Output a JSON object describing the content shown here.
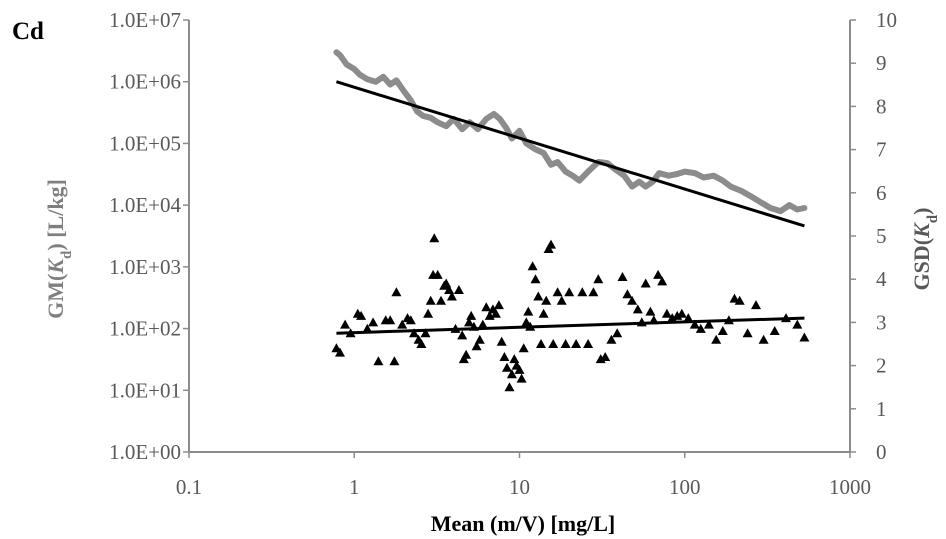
{
  "chart_data": {
    "type": "scatter",
    "panel_label": "Cd",
    "xlabel": "Mean (m/V) [mg/L]",
    "ylabel_left": {
      "main": "GM(",
      "italic": "K",
      "sub": "d",
      "tail": ")  [L/kg]"
    },
    "ylabel_right": {
      "main": "GSD(",
      "italic": "K",
      "sub": "d",
      "tail": ")"
    },
    "x_scale": "log",
    "xlim": [
      0.1,
      1000
    ],
    "x_ticks": [
      0.1,
      1,
      10,
      100,
      1000
    ],
    "x_tick_labels": [
      "0.1",
      "1",
      "10",
      "100",
      "1000"
    ],
    "y_left_scale": "log",
    "y_left_lim": [
      1,
      10000000
    ],
    "y_left_ticks": [
      1,
      10,
      100,
      1000,
      10000,
      100000,
      1000000,
      10000000
    ],
    "y_left_tick_labels": [
      "1.0E+00",
      "1.0E+01",
      "1.0E+02",
      "1.0E+03",
      "1.0E+04",
      "1.0E+05",
      "1.0E+06",
      "1.0E+07"
    ],
    "y_right_lim": [
      0,
      10
    ],
    "y_right_ticks": [
      0,
      1,
      2,
      3,
      4,
      5,
      6,
      7,
      8,
      9,
      10
    ],
    "y_right_tick_labels": [
      "0",
      "1",
      "2",
      "3",
      "4",
      "5",
      "6",
      "7",
      "8",
      "9",
      "10"
    ],
    "colors": {
      "gm_series": "#8c8c8c",
      "fit_lines": "#000000",
      "gsd_markers": "#000000",
      "axes": "#8c8c8c",
      "tick_text": "#595959",
      "left_title": "#7f7f7f",
      "right_title": "#595959"
    },
    "series": [
      {
        "axis": "left",
        "style": "thick-gray-line",
        "points": [
          [
            0.78,
            3000000
          ],
          [
            0.82,
            2700000
          ],
          [
            0.9,
            1900000
          ],
          [
            1.0,
            1600000
          ],
          [
            1.08,
            1300000
          ],
          [
            1.2,
            1100000
          ],
          [
            1.35,
            1000000
          ],
          [
            1.5,
            1200000
          ],
          [
            1.65,
            900000
          ],
          [
            1.8,
            1050000
          ],
          [
            2.0,
            700000
          ],
          [
            2.2,
            500000
          ],
          [
            2.4,
            330000
          ],
          [
            2.6,
            280000
          ],
          [
            2.9,
            260000
          ],
          [
            3.2,
            220000
          ],
          [
            3.6,
            190000
          ],
          [
            4.0,
            250000
          ],
          [
            4.5,
            170000
          ],
          [
            5.0,
            220000
          ],
          [
            5.6,
            170000
          ],
          [
            6.3,
            250000
          ],
          [
            7.0,
            300000
          ],
          [
            7.6,
            250000
          ],
          [
            8.3,
            180000
          ],
          [
            9.0,
            120000
          ],
          [
            10.0,
            160000
          ],
          [
            11.0,
            100000
          ],
          [
            12.5,
            80000
          ],
          [
            14.0,
            70000
          ],
          [
            15.5,
            45000
          ],
          [
            17.0,
            50000
          ],
          [
            19.0,
            35000
          ],
          [
            21.0,
            30000
          ],
          [
            23.0,
            25000
          ],
          [
            26.0,
            35000
          ],
          [
            30.0,
            50000
          ],
          [
            34.0,
            48000
          ],
          [
            38.0,
            38000
          ],
          [
            43.0,
            30000
          ],
          [
            48.0,
            20000
          ],
          [
            53.0,
            24000
          ],
          [
            58.0,
            20000
          ],
          [
            64.0,
            24000
          ],
          [
            70.0,
            33000
          ],
          [
            80.0,
            30000
          ],
          [
            90.0,
            32000
          ],
          [
            100.0,
            35000
          ],
          [
            115.0,
            33000
          ],
          [
            130.0,
            28000
          ],
          [
            150.0,
            30000
          ],
          [
            170.0,
            25000
          ],
          [
            190.0,
            20000
          ],
          [
            220.0,
            17000
          ],
          [
            250.0,
            14000
          ],
          [
            290.0,
            11000
          ],
          [
            330.0,
            9000
          ],
          [
            380.0,
            8000
          ],
          [
            430.0,
            10000
          ],
          [
            480.0,
            8500
          ],
          [
            530.0,
            9000
          ]
        ]
      },
      {
        "axis": "left",
        "style": "black-trend-line",
        "points": [
          [
            0.78,
            1000000
          ],
          [
            530,
            4600
          ]
        ]
      },
      {
        "axis": "right",
        "style": "black-trend-line",
        "points": [
          [
            0.78,
            2.75
          ],
          [
            530,
            3.1
          ]
        ]
      },
      {
        "axis": "right",
        "style": "triangle-markers",
        "points": [
          [
            0.78,
            2.4
          ],
          [
            0.82,
            2.3
          ],
          [
            0.88,
            2.95
          ],
          [
            0.95,
            2.75
          ],
          [
            1.05,
            3.2
          ],
          [
            1.1,
            3.15
          ],
          [
            1.2,
            2.85
          ],
          [
            1.3,
            3.0
          ],
          [
            1.4,
            2.1
          ],
          [
            1.55,
            3.05
          ],
          [
            1.65,
            3.05
          ],
          [
            1.75,
            2.1
          ],
          [
            1.8,
            3.7
          ],
          [
            1.95,
            2.95
          ],
          [
            2.1,
            3.1
          ],
          [
            2.2,
            3.05
          ],
          [
            2.3,
            2.75
          ],
          [
            2.45,
            2.6
          ],
          [
            2.55,
            2.5
          ],
          [
            2.7,
            2.75
          ],
          [
            2.8,
            3.2
          ],
          [
            2.9,
            3.5
          ],
          [
            3.0,
            4.1
          ],
          [
            3.05,
            4.95
          ],
          [
            3.2,
            4.1
          ],
          [
            3.35,
            3.5
          ],
          [
            3.5,
            3.85
          ],
          [
            3.6,
            3.9
          ],
          [
            3.75,
            3.75
          ],
          [
            3.9,
            3.6
          ],
          [
            4.1,
            2.85
          ],
          [
            4.3,
            3.75
          ],
          [
            4.5,
            2.7
          ],
          [
            4.6,
            2.15
          ],
          [
            4.75,
            2.25
          ],
          [
            4.95,
            3.0
          ],
          [
            5.1,
            3.15
          ],
          [
            5.3,
            2.9
          ],
          [
            5.5,
            2.45
          ],
          [
            5.75,
            2.6
          ],
          [
            6.0,
            2.95
          ],
          [
            6.3,
            3.35
          ],
          [
            6.6,
            3.15
          ],
          [
            6.9,
            3.3
          ],
          [
            7.2,
            3.2
          ],
          [
            7.5,
            3.4
          ],
          [
            7.8,
            2.55
          ],
          [
            8.1,
            2.2
          ],
          [
            8.4,
            1.95
          ],
          [
            8.7,
            1.5
          ],
          [
            9.0,
            1.8
          ],
          [
            9.3,
            2.15
          ],
          [
            9.6,
            2.0
          ],
          [
            10.0,
            1.9
          ],
          [
            10.3,
            1.7
          ],
          [
            10.6,
            2.4
          ],
          [
            11.0,
            3.0
          ],
          [
            11.3,
            3.25
          ],
          [
            11.6,
            2.9
          ],
          [
            12.0,
            4.3
          ],
          [
            12.5,
            4.0
          ],
          [
            13.0,
            3.6
          ],
          [
            13.5,
            2.5
          ],
          [
            14.0,
            3.2
          ],
          [
            14.5,
            3.5
          ],
          [
            15.0,
            4.7
          ],
          [
            15.5,
            4.8
          ],
          [
            16.0,
            2.5
          ],
          [
            17.0,
            3.7
          ],
          [
            18.0,
            3.5
          ],
          [
            19.0,
            2.5
          ],
          [
            20.0,
            3.7
          ],
          [
            22.0,
            2.5
          ],
          [
            24.0,
            3.7
          ],
          [
            26.0,
            2.5
          ],
          [
            28.0,
            3.7
          ],
          [
            30.0,
            4.0
          ],
          [
            31.0,
            2.15
          ],
          [
            33.0,
            2.2
          ],
          [
            36.0,
            2.6
          ],
          [
            39.0,
            2.75
          ],
          [
            42.0,
            4.05
          ],
          [
            45.0,
            3.65
          ],
          [
            48.0,
            3.5
          ],
          [
            52.0,
            3.3
          ],
          [
            55.0,
            3.0
          ],
          [
            58.0,
            3.9
          ],
          [
            62.0,
            3.25
          ],
          [
            65.0,
            3.05
          ],
          [
            69.0,
            4.1
          ],
          [
            73.0,
            3.95
          ],
          [
            78.0,
            3.2
          ],
          [
            84.0,
            3.1
          ],
          [
            90.0,
            3.15
          ],
          [
            96.0,
            3.2
          ],
          [
            105.0,
            3.1
          ],
          [
            115.0,
            2.95
          ],
          [
            125.0,
            2.85
          ],
          [
            140.0,
            2.95
          ],
          [
            155.0,
            2.6
          ],
          [
            170.0,
            2.8
          ],
          [
            185.0,
            3.05
          ],
          [
            200.0,
            3.55
          ],
          [
            215.0,
            3.5
          ],
          [
            240.0,
            2.75
          ],
          [
            270.0,
            3.4
          ],
          [
            300.0,
            2.6
          ],
          [
            350.0,
            2.8
          ],
          [
            410.0,
            3.1
          ],
          [
            480.0,
            2.95
          ],
          [
            530.0,
            2.65
          ]
        ]
      }
    ]
  }
}
